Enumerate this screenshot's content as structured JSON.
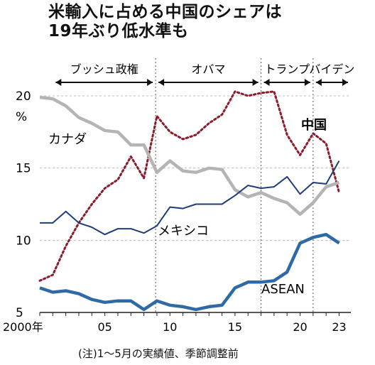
{
  "title": {
    "line1": "米輸入に占める中国のシェアは",
    "line2": "19年ぶり低水準も"
  },
  "note": "(注)1～5月の実績値、季節調整前",
  "eras": [
    {
      "label": "ブッシュ政権",
      "start": 2001.0,
      "end": 2008.9
    },
    {
      "label": "オバマ",
      "start": 2008.9,
      "end": 2017.0
    },
    {
      "label": "トランプ",
      "start": 2017.0,
      "end": 2021.0
    },
    {
      "label": "バイデン",
      "start": 2021.0,
      "end": 2023.9
    }
  ],
  "colors": {
    "china": "#8a1c2b",
    "canada": "#b4b4b4",
    "mexico": "#1f3d78",
    "asean": "#2f6aa6",
    "grid": "#bdbdbd"
  },
  "chart_data": {
    "type": "line",
    "ylabel": "%",
    "ylim": [
      5,
      20
    ],
    "xlim": [
      2000,
      2023.9
    ],
    "y_ticks": [
      {
        "value": 20,
        "label": "20"
      },
      {
        "value": 15,
        "label": "15"
      },
      {
        "value": 10,
        "label": "10"
      },
      {
        "value": 5,
        "label": "5"
      }
    ],
    "x_ticks": [
      {
        "value": 2000,
        "label": "2000年"
      },
      {
        "value": 2005,
        "label": "05"
      },
      {
        "value": 2010,
        "label": "10"
      },
      {
        "value": 2015,
        "label": "15"
      },
      {
        "value": 2020,
        "label": "20"
      },
      {
        "value": 2023,
        "label": "23"
      }
    ],
    "x": [
      2000,
      2001,
      2002,
      2003,
      2004,
      2005,
      2006,
      2007,
      2008,
      2009,
      2010,
      2011,
      2012,
      2013,
      2014,
      2015,
      2016,
      2017,
      2018,
      2019,
      2020,
      2021,
      2022,
      2023
    ],
    "series": [
      {
        "key": "china",
        "name": "中国",
        "style": "dotted",
        "values": [
          7.2,
          7.6,
          9.6,
          11.2,
          12.5,
          13.6,
          14.2,
          15.8,
          14.3,
          18.6,
          17.5,
          17.0,
          17.3,
          18.1,
          18.7,
          20.3,
          20.0,
          20.2,
          20.3,
          17.3,
          15.9,
          17.4,
          16.7,
          13.3
        ]
      },
      {
        "key": "canada",
        "name": "カナダ",
        "style": "thick",
        "values": [
          19.9,
          19.8,
          19.3,
          18.5,
          18.1,
          17.6,
          17.5,
          16.6,
          16.6,
          14.7,
          15.5,
          14.8,
          14.7,
          15.0,
          14.9,
          13.5,
          13.0,
          13.3,
          12.9,
          12.6,
          11.8,
          12.6,
          13.7,
          14.0
        ]
      },
      {
        "key": "mexico",
        "name": "メキシコ",
        "style": "thin",
        "values": [
          11.2,
          11.2,
          12.0,
          11.2,
          10.9,
          10.4,
          10.8,
          10.8,
          10.5,
          11.0,
          12.3,
          12.2,
          12.5,
          12.5,
          12.5,
          13.1,
          13.8,
          13.6,
          13.7,
          14.4,
          13.2,
          14.0,
          13.9,
          15.5
        ]
      },
      {
        "key": "asean",
        "name": "ASEAN",
        "style": "thick",
        "values": [
          6.7,
          6.4,
          6.5,
          6.3,
          5.9,
          5.7,
          5.8,
          5.8,
          5.2,
          5.8,
          5.5,
          5.4,
          5.2,
          5.4,
          5.5,
          6.7,
          7.1,
          7.1,
          7.2,
          7.8,
          9.8,
          10.2,
          10.4,
          9.8
        ]
      }
    ]
  }
}
